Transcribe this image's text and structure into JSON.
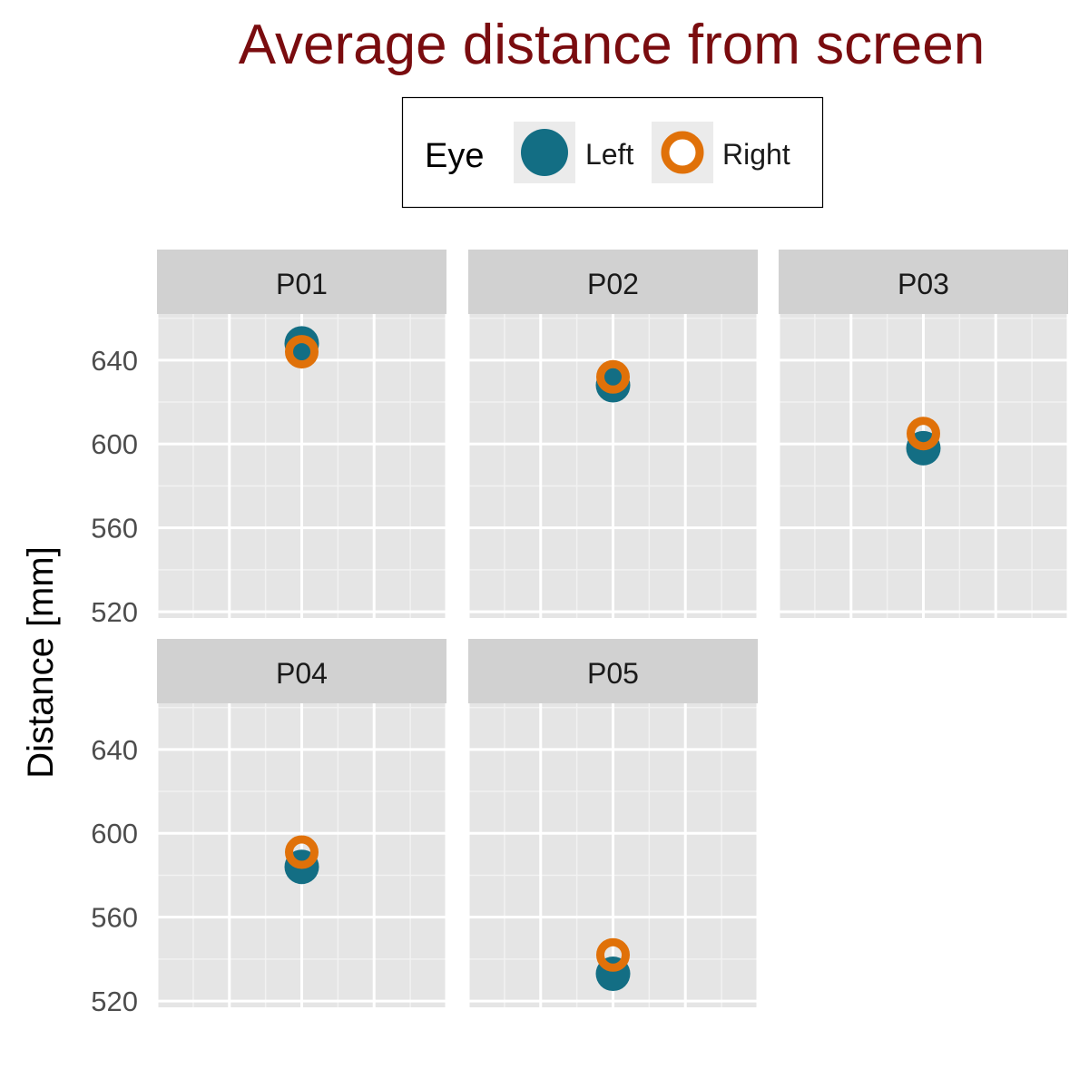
{
  "chart_data": {
    "type": "scatter",
    "title": "Average distance from screen",
    "ylabel": "Distance [mm]",
    "xlabel": "",
    "ylim": [
      517,
      662
    ],
    "y_ticks": [
      520,
      560,
      600,
      640
    ],
    "grid": true,
    "legend": {
      "title": "Eye",
      "placement": "top",
      "entries": [
        "Left",
        "Right"
      ]
    },
    "colors": {
      "Left": "#136e84",
      "Right": "#e07109",
      "title": "#7a0c0f"
    },
    "facets": [
      {
        "label": "P01",
        "values": {
          "Left": 648,
          "Right": 644
        }
      },
      {
        "label": "P02",
        "values": {
          "Left": 628,
          "Right": 632
        }
      },
      {
        "label": "P03",
        "values": {
          "Left": 598,
          "Right": 605
        }
      },
      {
        "label": "P04",
        "values": {
          "Left": 584,
          "Right": 591
        }
      },
      {
        "label": "P05",
        "values": {
          "Left": 533,
          "Right": 542
        }
      }
    ]
  }
}
